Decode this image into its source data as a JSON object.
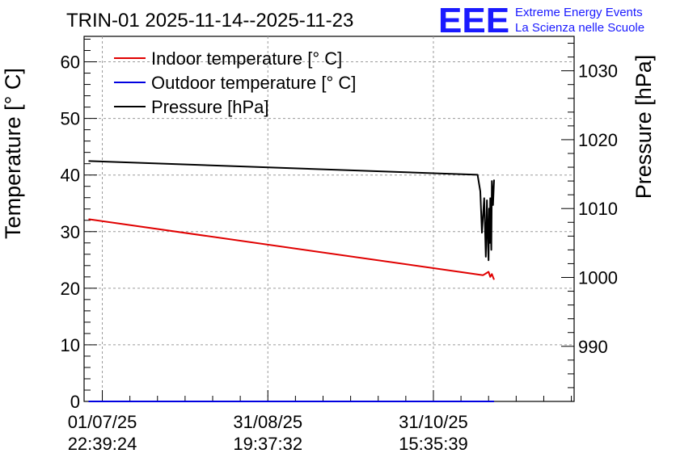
{
  "title": "TRIN-01 2025-11-14--2025-11-23",
  "logo": {
    "text": "EEE",
    "line1": "Extreme Energy Events",
    "line2": "La Scienza nelle Scuole",
    "color": "#1a1aff"
  },
  "colors": {
    "indoor": "#e00000",
    "outdoor": "#0000e0",
    "pressure": "#000000",
    "grid": "#9a9a9a"
  },
  "chart_data": {
    "type": "line",
    "title": "TRIN-01 2025-11-14--2025-11-23",
    "ylabel_left": "Temperature [° C]",
    "ylabel_right": "Pressure [hPa]",
    "xlabel": "",
    "x_range": [
      -0.33,
      8.55
    ],
    "ylim_left": [
      0,
      64.5
    ],
    "ylim_right": [
      982,
      1035
    ],
    "left_ticks": [
      "0",
      "10",
      "20",
      "30",
      "40",
      "50",
      "60"
    ],
    "left_tick_values": [
      0,
      10,
      20,
      30,
      40,
      50,
      60
    ],
    "right_ticks": [
      "990",
      "1000",
      "1010",
      "1020",
      "1030"
    ],
    "right_tick_values": [
      990,
      1000,
      1010,
      1020,
      1030
    ],
    "x_ticks": [
      {
        "date": "01/07/25",
        "time": "22:39:24",
        "x": 0
      },
      {
        "date": "31/08/25",
        "time": "19:37:32",
        "x": 3
      },
      {
        "date": "31/10/25",
        "time": "15:35:39",
        "x": 6
      }
    ],
    "legend": [
      "Indoor temperature [° C]",
      "Outdoor temperature [° C]",
      "Pressure [hPa]"
    ],
    "series": [
      {
        "name": "Indoor temperature [° C]",
        "axis": "left",
        "x": [
          -0.25,
          6.9,
          6.95,
          7.0,
          7.03,
          7.06,
          7.1
        ],
        "y": [
          32.2,
          22.3,
          22.6,
          22.9,
          22.0,
          22.5,
          21.5
        ]
      },
      {
        "name": "Outdoor temperature [° C]",
        "axis": "left",
        "x": [
          -0.25,
          7.1
        ],
        "y": [
          0.0,
          0.0
        ]
      },
      {
        "name": "Pressure [hPa]",
        "axis": "right",
        "x": [
          -0.25,
          6.8,
          6.85,
          6.88,
          6.92,
          6.95,
          6.97,
          6.99,
          7.0,
          7.01,
          7.02,
          7.03,
          7.04,
          7.05,
          7.06,
          7.08,
          7.1
        ],
        "y": [
          1016.9,
          1014.9,
          1012.5,
          1006.5,
          1011.5,
          1003.0,
          1011.2,
          1004.5,
          1002.5,
          1010.0,
          1005.0,
          1011.5,
          1007.0,
          1004.0,
          1014.0,
          1010.5,
          1014.2
        ]
      }
    ]
  }
}
